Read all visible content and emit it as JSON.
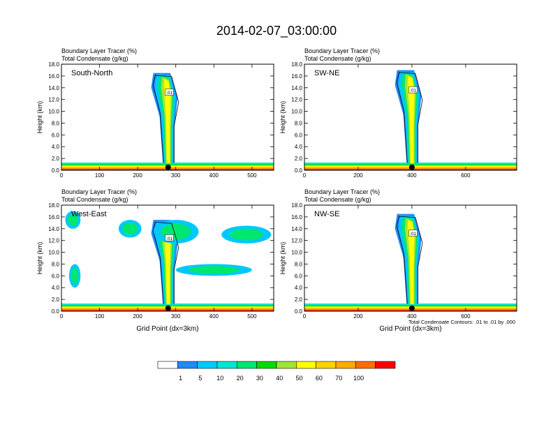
{
  "title": "2014-02-07_03:00:00",
  "footnote": "Total Condensate Contours: .01 to .01 by .000",
  "colorbar": {
    "labels": [
      "1",
      "5",
      "10",
      "20",
      "30",
      "40",
      "50",
      "60",
      "70",
      "100"
    ],
    "colors": [
      "#ffffff",
      "#1e8cff",
      "#00c8ff",
      "#00e6d2",
      "#00e66e",
      "#00dc00",
      "#a0e632",
      "#ffff00",
      "#ffd200",
      "#ffaa00",
      "#ff6e00",
      "#ff0000"
    ]
  },
  "chart_data": [
    {
      "type": "heatmap",
      "name": "South-North",
      "label1": "Boundary Layer Tracer   (%)",
      "label2": "Total Condensate   (g/kg)",
      "ylabel": "Height (km)",
      "xlabel": "",
      "xlim": [
        0,
        557
      ],
      "ylim": [
        0,
        18
      ],
      "xticks": [
        0,
        100,
        200,
        300,
        400,
        500
      ],
      "yticks": [
        0,
        2,
        4,
        6,
        8,
        10,
        12,
        14,
        16,
        18
      ],
      "contour_labels": [
        ".01"
      ],
      "marker_x": 280,
      "column_top_km": 16.5
    },
    {
      "type": "heatmap",
      "name": "SW-NE",
      "label1": "Boundary Layer Tracer   (%)",
      "label2": "Total Condensate   (g/kg)",
      "ylabel": "Height (km)",
      "xlabel": "",
      "xlim": [
        0,
        790
      ],
      "ylim": [
        0,
        18
      ],
      "xticks": [
        0,
        200,
        400,
        600
      ],
      "yticks": [
        0,
        2,
        4,
        6,
        8,
        10,
        12,
        14,
        16,
        18
      ],
      "contour_labels": [
        ".01"
      ],
      "marker_x": 400,
      "column_top_km": 17.0
    },
    {
      "type": "heatmap",
      "name": "West-East",
      "label1": "Boundary Layer Tracer   (%)",
      "label2": "Total Condensate   (g/kg)",
      "ylabel": "Height (km)",
      "xlabel": "Grid Point (dx=3km)",
      "xlim": [
        0,
        557
      ],
      "ylim": [
        0,
        18
      ],
      "xticks": [
        0,
        100,
        200,
        300,
        400,
        500
      ],
      "yticks": [
        0,
        2,
        4,
        6,
        8,
        10,
        12,
        14,
        16,
        18
      ],
      "contour_labels": [
        ".01"
      ],
      "marker_x": 280,
      "column_top_km": 15.5
    },
    {
      "type": "heatmap",
      "name": "NW-SE",
      "label1": "Boundary Layer Tracer   (%)",
      "label2": "Total Condensate   (g/kg)",
      "ylabel": "Height (km)",
      "xlabel": "Grid Point (dx=3km)",
      "xlim": [
        0,
        790
      ],
      "ylim": [
        0,
        18
      ],
      "xticks": [
        0,
        200,
        400,
        600
      ],
      "yticks": [
        0,
        2,
        4,
        6,
        8,
        10,
        12,
        14,
        16,
        18
      ],
      "contour_labels": [
        ".01"
      ],
      "marker_x": 400,
      "column_top_km": 16.5
    }
  ]
}
